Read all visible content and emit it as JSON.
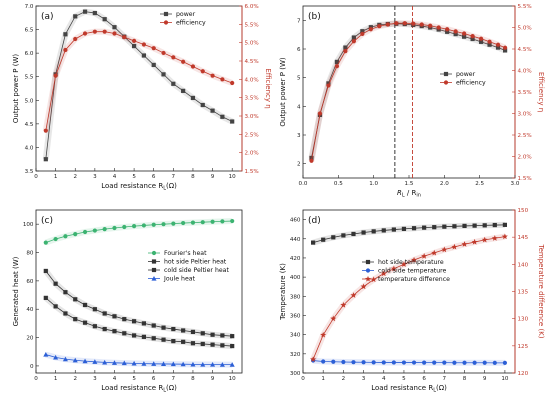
{
  "chart_data": [
    {
      "id": "a",
      "type": "line",
      "panel_label": "(a)",
      "xlabel_main": "Load resistance ",
      "xlabel_sub": "L",
      "xlabel_unit": "(Ω)",
      "ylabel": "Output power P (W)",
      "y2label": "Efficiency η",
      "xlim": [
        0,
        10.5
      ],
      "ylim": [
        3.5,
        7
      ],
      "y2lim": [
        1.5,
        6.0
      ],
      "xticks": [
        "0",
        "1",
        "2",
        "3",
        "4",
        "5",
        "6",
        "7",
        "8",
        "9",
        "10"
      ],
      "yticks": [
        "3.5",
        "4.0",
        "4.5",
        "5.0",
        "5.5",
        "6.0",
        "6.5",
        "7.0"
      ],
      "y2ticks": [
        "1.5%",
        "2.0%",
        "2.5%",
        "3.0%",
        "3.5%",
        "4.0%",
        "4.5%",
        "5.0%",
        "5.5%",
        "6.0%"
      ],
      "legend": [
        "power",
        "efficiency"
      ],
      "series": [
        {
          "name": "power",
          "axis": "left",
          "color": "#444444",
          "marker": "square",
          "x": [
            0.5,
            1,
            1.5,
            2,
            2.5,
            3,
            3.5,
            4,
            4.5,
            5,
            5.5,
            6,
            6.5,
            7,
            7.5,
            8,
            8.5,
            9,
            9.5,
            10
          ],
          "y": [
            3.75,
            5.55,
            6.4,
            6.78,
            6.88,
            6.85,
            6.72,
            6.55,
            6.35,
            6.15,
            5.95,
            5.75,
            5.55,
            5.35,
            5.2,
            5.05,
            4.9,
            4.78,
            4.65,
            4.55
          ]
        },
        {
          "name": "efficiency",
          "axis": "right",
          "color": "#c0392b",
          "marker": "circle",
          "x": [
            0.5,
            1,
            1.5,
            2,
            2.5,
            3,
            3.5,
            4,
            4.5,
            5,
            5.5,
            6,
            6.5,
            7,
            7.5,
            8,
            8.5,
            9,
            9.5,
            10
          ],
          "y": [
            2.6,
            4.1,
            4.8,
            5.1,
            5.25,
            5.3,
            5.3,
            5.25,
            5.15,
            5.05,
            4.95,
            4.85,
            4.72,
            4.6,
            4.48,
            4.35,
            4.22,
            4.1,
            4.0,
            3.9
          ]
        }
      ]
    },
    {
      "id": "b",
      "type": "line",
      "panel_label": "(b)",
      "xlabel_main": "R",
      "xlabel_sub": "L",
      "xlabel_unit": " / R",
      "xlabel_sub2": "in",
      "ylabel": "Output power P (W)",
      "y2label": "Efficiency η",
      "xlim": [
        0,
        3.0
      ],
      "ylim": [
        1.5,
        7.5
      ],
      "y2lim": [
        1.5,
        5.5
      ],
      "xticks": [
        "0.0",
        "0.5",
        "1.0",
        "1.5",
        "2.0",
        "2.5",
        "3.0"
      ],
      "yticks": [
        "2",
        "3",
        "4",
        "5",
        "6",
        "7"
      ],
      "y2ticks": [
        "1.5%",
        "2.0%",
        "2.5%",
        "3.0%",
        "3.5%",
        "4.0%",
        "4.5%",
        "5.0%",
        "5.5%"
      ],
      "legend": [
        "power",
        "efficiency"
      ],
      "vlines": [
        {
          "x": 1.3,
          "color": "#222222"
        },
        {
          "x": 1.55,
          "color": "#c0392b"
        }
      ],
      "series": [
        {
          "name": "power",
          "axis": "left",
          "color": "#444444",
          "marker": "square",
          "x": [
            0.12,
            0.24,
            0.36,
            0.48,
            0.6,
            0.72,
            0.84,
            0.96,
            1.08,
            1.2,
            1.32,
            1.44,
            1.56,
            1.68,
            1.8,
            1.92,
            2.04,
            2.16,
            2.28,
            2.4,
            2.52,
            2.64,
            2.76,
            2.86
          ],
          "y": [
            2.2,
            3.7,
            4.8,
            5.55,
            6.05,
            6.4,
            6.62,
            6.76,
            6.84,
            6.87,
            6.88,
            6.87,
            6.84,
            6.8,
            6.75,
            6.68,
            6.6,
            6.52,
            6.43,
            6.35,
            6.25,
            6.15,
            6.05,
            5.95
          ]
        },
        {
          "name": "efficiency",
          "axis": "right",
          "color": "#c0392b",
          "marker": "circle",
          "x": [
            0.12,
            0.24,
            0.36,
            0.48,
            0.6,
            0.72,
            0.84,
            0.96,
            1.08,
            1.2,
            1.32,
            1.44,
            1.56,
            1.68,
            1.8,
            1.92,
            2.04,
            2.16,
            2.28,
            2.4,
            2.52,
            2.64,
            2.76,
            2.86
          ],
          "y": [
            1.9,
            3.0,
            3.65,
            4.1,
            4.45,
            4.68,
            4.85,
            4.96,
            5.03,
            5.07,
            5.1,
            5.1,
            5.09,
            5.07,
            5.04,
            5.0,
            4.96,
            4.91,
            4.86,
            4.8,
            4.74,
            4.67,
            4.6,
            4.53
          ]
        }
      ]
    },
    {
      "id": "c",
      "type": "line",
      "panel_label": "(c)",
      "xlabel_main": "Load resistance ",
      "xlabel_sub": "L",
      "xlabel_unit": "(Ω)",
      "ylabel": "Generated heat (W)",
      "xlim": [
        0,
        10.5
      ],
      "ylim": [
        -5,
        110
      ],
      "xticks": [
        "0",
        "1",
        "2",
        "3",
        "4",
        "5",
        "6",
        "7",
        "8",
        "9",
        "10"
      ],
      "yticks": [
        "0",
        "20",
        "40",
        "60",
        "80",
        "100"
      ],
      "legend": [
        "Fourier's heat",
        "hot side Peltier heat",
        "cold side Peltier heat",
        "Joule heat"
      ],
      "series": [
        {
          "name": "Fourier's heat",
          "axis": "left",
          "color": "#3cb371",
          "marker": "circle",
          "x": [
            0.5,
            1,
            1.5,
            2,
            2.5,
            3,
            3.5,
            4,
            4.5,
            5,
            5.5,
            6,
            6.5,
            7,
            7.5,
            8,
            8.5,
            9,
            9.5,
            10
          ],
          "y": [
            87,
            89.5,
            91.5,
            93,
            94.5,
            95.5,
            96.5,
            97.3,
            98,
            98.6,
            99.1,
            99.6,
            100,
            100.4,
            100.8,
            101.1,
            101.4,
            101.7,
            102,
            102.2
          ]
        },
        {
          "name": "hot side Peltier heat",
          "axis": "left",
          "color": "#333333",
          "marker": "square",
          "x": [
            0.5,
            1,
            1.5,
            2,
            2.5,
            3,
            3.5,
            4,
            4.5,
            5,
            5.5,
            6,
            6.5,
            7,
            7.5,
            8,
            8.5,
            9,
            9.5,
            10
          ],
          "y": [
            67,
            58,
            52,
            47,
            43,
            40,
            37,
            35,
            33,
            31.5,
            30,
            28.5,
            27,
            26,
            25,
            24,
            23,
            22,
            21.5,
            21
          ]
        },
        {
          "name": "cold side Peltier heat",
          "axis": "left",
          "color": "#333333",
          "marker": "square-half",
          "x": [
            0.5,
            1,
            1.5,
            2,
            2.5,
            3,
            3.5,
            4,
            4.5,
            5,
            5.5,
            6,
            6.5,
            7,
            7.5,
            8,
            8.5,
            9,
            9.5,
            10
          ],
          "y": [
            48,
            42,
            37,
            33,
            30.5,
            28,
            26,
            24.5,
            23,
            21.5,
            20.5,
            19.5,
            18.5,
            17.5,
            17,
            16,
            15.5,
            15,
            14.5,
            14
          ]
        },
        {
          "name": "Joule heat",
          "axis": "left",
          "color": "#2c5fd6",
          "marker": "triangle",
          "x": [
            0.5,
            1,
            1.5,
            2,
            2.5,
            3,
            3.5,
            4,
            4.5,
            5,
            5.5,
            6,
            6.5,
            7,
            7.5,
            8,
            8.5,
            9,
            9.5,
            10
          ],
          "y": [
            8,
            6,
            4.8,
            4,
            3.4,
            2.9,
            2.5,
            2.2,
            2.0,
            1.8,
            1.6,
            1.5,
            1.4,
            1.3,
            1.2,
            1.1,
            1.0,
            1.0,
            0.9,
            0.9
          ]
        }
      ]
    },
    {
      "id": "d",
      "type": "line",
      "panel_label": "(d)",
      "xlabel_main": "Load resistance ",
      "xlabel_sub": "L",
      "xlabel_unit": "(Ω)",
      "ylabel": "Temperature (K)",
      "y2label": "Temperature difference (K)",
      "xlim": [
        0,
        10.5
      ],
      "ylim": [
        300,
        470
      ],
      "y2lim": [
        120,
        150
      ],
      "xticks": [
        "0",
        "1",
        "2",
        "3",
        "4",
        "5",
        "6",
        "7",
        "8",
        "9",
        "10"
      ],
      "yticks": [
        "300",
        "320",
        "340",
        "360",
        "380",
        "400",
        "420",
        "440",
        "460"
      ],
      "y2ticks": [
        "120",
        "125",
        "130",
        "135",
        "140",
        "145",
        "150"
      ],
      "legend": [
        "hot side temperature",
        "cold side temperature",
        "temperature difference"
      ],
      "series": [
        {
          "name": "hot side temperature",
          "axis": "left",
          "color": "#333333",
          "marker": "square",
          "x": [
            0.5,
            1,
            1.5,
            2,
            2.5,
            3,
            3.5,
            4,
            4.5,
            5,
            5.5,
            6,
            6.5,
            7,
            7.5,
            8,
            8.5,
            9,
            9.5,
            10
          ],
          "y": [
            436,
            439,
            441.5,
            443.5,
            445,
            446.5,
            447.7,
            448.7,
            449.6,
            450.3,
            451,
            451.6,
            452.1,
            452.6,
            453,
            453.4,
            453.7,
            454,
            454.3,
            454.5
          ]
        },
        {
          "name": "cold side temperature",
          "axis": "left",
          "color": "#2c5fd6",
          "marker": "circle",
          "x": [
            0.5,
            1,
            1.5,
            2,
            2.5,
            3,
            3.5,
            4,
            4.5,
            5,
            5.5,
            6,
            6.5,
            7,
            7.5,
            8,
            8.5,
            9,
            9.5,
            10
          ],
          "y": [
            313,
            312,
            311.7,
            311.5,
            311.3,
            311.2,
            311.1,
            311,
            311,
            310.9,
            310.9,
            310.8,
            310.8,
            310.8,
            310.7,
            310.7,
            310.7,
            310.7,
            310.6,
            310.6
          ]
        },
        {
          "name": "temperature difference",
          "axis": "right",
          "color": "#c0392b",
          "marker": "star",
          "x": [
            0.5,
            1,
            1.5,
            2,
            2.5,
            3,
            3.5,
            4,
            4.5,
            5,
            5.5,
            6,
            6.5,
            7,
            7.5,
            8,
            8.5,
            9,
            9.5,
            10
          ],
          "y": [
            122.5,
            127,
            130,
            132.5,
            134.3,
            135.9,
            137.2,
            138.3,
            139.2,
            140,
            140.8,
            141.5,
            142.1,
            142.7,
            143.2,
            143.7,
            144.1,
            144.5,
            144.8,
            145.1
          ]
        }
      ]
    }
  ]
}
